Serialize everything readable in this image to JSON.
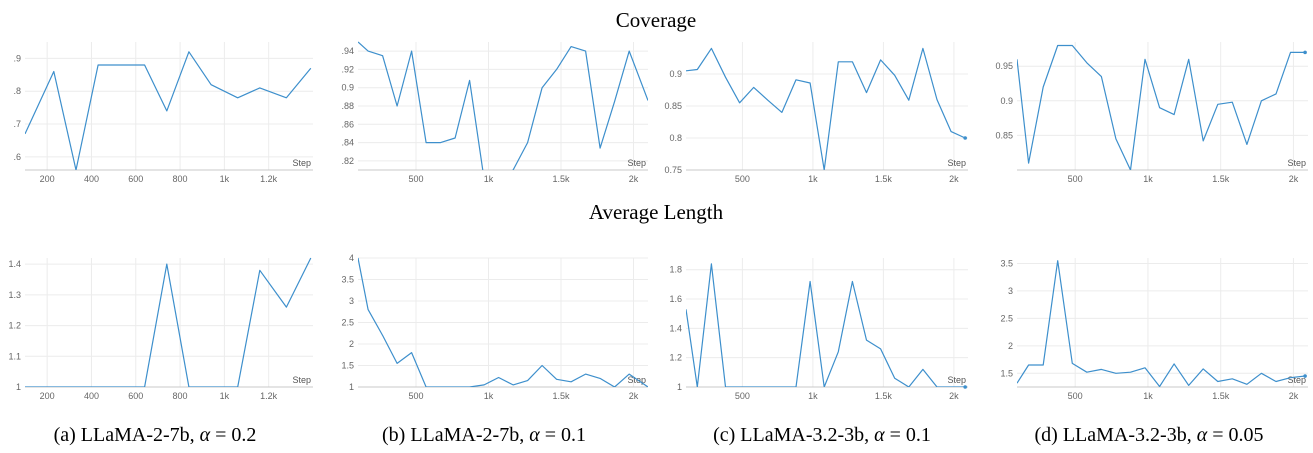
{
  "row_titles": [
    "Coverage",
    "Average Length"
  ],
  "captions": [
    {
      "text": "(a) LLaMA-2-7b, ",
      "alpha": "0.2"
    },
    {
      "text": "(b) LLaMA-2-7b, ",
      "alpha": "0.1"
    },
    {
      "text": "(c) LLaMA-3.2-3b, ",
      "alpha": "0.1"
    },
    {
      "text": "(d) LLaMA-3.2-3b, ",
      "alpha": "0.05"
    }
  ],
  "alpha_symbol": "α",
  "alpha_eq": " = ",
  "colors": {
    "line": "#3d8fcc",
    "grid": "#ececec",
    "axis": "#c8c8c8",
    "tick": "#666666"
  },
  "chart_data": [
    {
      "type": "line",
      "row": "Coverage",
      "panel": "a",
      "xlabel": "Step",
      "xlim": [
        100,
        1400
      ],
      "ylim": [
        0.56,
        0.95
      ],
      "xticks": [
        200,
        400,
        600,
        800,
        1000,
        1200
      ],
      "xtick_labels": [
        "200",
        "400",
        "600",
        "800",
        "1k",
        "1.2k"
      ],
      "yticks": [
        0.6,
        0.7,
        0.8,
        0.9
      ],
      "ytick_labels": [
        ".6",
        ".7",
        ".8",
        ".9"
      ],
      "x": [
        100,
        230,
        330,
        430,
        540,
        640,
        740,
        840,
        940,
        1060,
        1160,
        1280,
        1390
      ],
      "y": [
        0.67,
        0.86,
        0.56,
        0.88,
        0.88,
        0.88,
        0.74,
        0.92,
        0.82,
        0.78,
        0.81,
        0.78,
        0.87
      ],
      "end_marker": false
    },
    {
      "type": "line",
      "row": "Coverage",
      "panel": "b",
      "xlabel": "Step",
      "xlim": [
        100,
        2100
      ],
      "ylim": [
        0.81,
        0.95
      ],
      "xticks": [
        500,
        1000,
        1500,
        2000
      ],
      "xtick_labels": [
        "500",
        "1k",
        "1.5k",
        "2k"
      ],
      "yticks": [
        0.82,
        0.84,
        0.86,
        0.88,
        0.9,
        0.92,
        0.94
      ],
      "ytick_labels": [
        ".82",
        ".84",
        ".86",
        ".88",
        "0.9",
        ".92",
        ".94"
      ],
      "x": [
        100,
        170,
        270,
        370,
        470,
        570,
        670,
        770,
        870,
        970,
        1070,
        1170,
        1270,
        1370,
        1470,
        1570,
        1670,
        1770,
        1870,
        1970,
        2100
      ],
      "y": [
        0.95,
        0.94,
        0.935,
        0.88,
        0.94,
        0.84,
        0.84,
        0.845,
        0.908,
        0.8,
        0.8,
        0.81,
        0.84,
        0.9,
        0.92,
        0.945,
        0.94,
        0.834,
        0.885,
        0.94,
        0.886
      ],
      "end_marker": false
    },
    {
      "type": "line",
      "row": "Coverage",
      "panel": "c",
      "xlabel": "Step",
      "xlim": [
        100,
        2100
      ],
      "ylim": [
        0.75,
        0.95
      ],
      "xticks": [
        500,
        1000,
        1500,
        2000
      ],
      "xtick_labels": [
        "500",
        "1k",
        "1.5k",
        "2k"
      ],
      "yticks": [
        0.75,
        0.8,
        0.85,
        0.9
      ],
      "ytick_labels": [
        "0.75",
        "0.8",
        "0.85",
        "0.9"
      ],
      "x": [
        100,
        180,
        280,
        380,
        480,
        580,
        680,
        780,
        880,
        980,
        1080,
        1180,
        1280,
        1380,
        1480,
        1580,
        1680,
        1780,
        1880,
        1980,
        2080
      ],
      "y": [
        0.905,
        0.907,
        0.94,
        0.895,
        0.855,
        0.879,
        0.859,
        0.84,
        0.891,
        0.886,
        0.75,
        0.919,
        0.919,
        0.871,
        0.922,
        0.898,
        0.859,
        0.94,
        0.86,
        0.81,
        0.8
      ],
      "end_marker": true
    },
    {
      "type": "line",
      "row": "Coverage",
      "panel": "d",
      "xlabel": "Step",
      "xlim": [
        100,
        2100
      ],
      "ylim": [
        0.8,
        0.985
      ],
      "xticks": [
        500,
        1000,
        1500,
        2000
      ],
      "xtick_labels": [
        "500",
        "1k",
        "1.5k",
        "2k"
      ],
      "yticks": [
        0.85,
        0.9,
        0.95
      ],
      "ytick_labels": [
        "0.85",
        "0.9",
        "0.95"
      ],
      "x": [
        100,
        180,
        280,
        380,
        480,
        580,
        680,
        780,
        880,
        980,
        1080,
        1180,
        1280,
        1380,
        1480,
        1580,
        1680,
        1780,
        1880,
        1980,
        2080
      ],
      "y": [
        0.96,
        0.81,
        0.92,
        0.98,
        0.98,
        0.955,
        0.935,
        0.845,
        0.8,
        0.96,
        0.89,
        0.88,
        0.96,
        0.842,
        0.895,
        0.898,
        0.837,
        0.9,
        0.91,
        0.97,
        0.97
      ],
      "end_marker": true
    },
    {
      "type": "line",
      "row": "Average Length",
      "panel": "a",
      "xlabel": "Step",
      "xlim": [
        100,
        1400
      ],
      "ylim": [
        1.0,
        1.42
      ],
      "xticks": [
        200,
        400,
        600,
        800,
        1000,
        1200
      ],
      "xtick_labels": [
        "200",
        "400",
        "600",
        "800",
        "1k",
        "1.2k"
      ],
      "yticks": [
        1.0,
        1.1,
        1.2,
        1.3,
        1.4
      ],
      "ytick_labels": [
        "1",
        "1.1",
        "1.2",
        "1.3",
        "1.4"
      ],
      "x": [
        100,
        230,
        330,
        430,
        540,
        640,
        740,
        840,
        940,
        1060,
        1160,
        1280,
        1390
      ],
      "y": [
        1.0,
        1.0,
        1.0,
        1.0,
        1.0,
        1.0,
        1.4,
        1.0,
        1.0,
        1.0,
        1.38,
        1.26,
        1.42
      ],
      "end_marker": false
    },
    {
      "type": "line",
      "row": "Average Length",
      "panel": "b",
      "xlabel": "Step",
      "xlim": [
        100,
        2100
      ],
      "ylim": [
        1.0,
        4.0
      ],
      "xticks": [
        500,
        1000,
        1500,
        2000
      ],
      "xtick_labels": [
        "500",
        "1k",
        "1.5k",
        "2k"
      ],
      "yticks": [
        1.0,
        1.5,
        2.0,
        2.5,
        3.0,
        3.5,
        4.0
      ],
      "ytick_labels": [
        "1",
        "1.5",
        "2",
        "2.5",
        "3",
        "3.5",
        "4"
      ],
      "x": [
        100,
        170,
        270,
        370,
        470,
        570,
        670,
        770,
        870,
        970,
        1070,
        1170,
        1270,
        1370,
        1470,
        1570,
        1670,
        1770,
        1870,
        1970,
        2100
      ],
      "y": [
        4.0,
        2.8,
        2.2,
        1.55,
        1.8,
        1.0,
        1.0,
        1.0,
        1.0,
        1.05,
        1.22,
        1.05,
        1.15,
        1.5,
        1.18,
        1.12,
        1.3,
        1.2,
        1.0,
        1.3,
        1.0
      ],
      "end_marker": false
    },
    {
      "type": "line",
      "row": "Average Length",
      "panel": "c",
      "xlabel": "Step",
      "xlim": [
        100,
        2100
      ],
      "ylim": [
        1.0,
        1.88
      ],
      "xticks": [
        500,
        1000,
        1500,
        2000
      ],
      "xtick_labels": [
        "500",
        "1k",
        "1.5k",
        "2k"
      ],
      "yticks": [
        1.0,
        1.2,
        1.4,
        1.6,
        1.8
      ],
      "ytick_labels": [
        "1",
        "1.2",
        "1.4",
        "1.6",
        "1.8"
      ],
      "x": [
        100,
        180,
        280,
        380,
        480,
        580,
        680,
        780,
        880,
        980,
        1080,
        1180,
        1280,
        1380,
        1480,
        1580,
        1680,
        1780,
        1880,
        1980,
        2080
      ],
      "y": [
        1.53,
        1.0,
        1.84,
        1.0,
        1.0,
        1.0,
        1.0,
        1.0,
        1.0,
        1.72,
        1.0,
        1.24,
        1.72,
        1.32,
        1.26,
        1.06,
        1.0,
        1.12,
        1.0,
        1.0,
        1.0
      ],
      "end_marker": true
    },
    {
      "type": "line",
      "row": "Average Length",
      "panel": "d",
      "xlabel": "Step",
      "xlim": [
        100,
        2100
      ],
      "ylim": [
        1.25,
        3.6
      ],
      "xticks": [
        500,
        1000,
        1500,
        2000
      ],
      "xtick_labels": [
        "500",
        "1k",
        "1.5k",
        "2k"
      ],
      "yticks": [
        1.5,
        2.0,
        2.5,
        3.0,
        3.5
      ],
      "ytick_labels": [
        "1.5",
        "2",
        "2.5",
        "3",
        "3.5"
      ],
      "x": [
        100,
        180,
        280,
        380,
        480,
        580,
        680,
        780,
        880,
        980,
        1080,
        1180,
        1280,
        1380,
        1480,
        1580,
        1680,
        1780,
        1880,
        1980,
        2080
      ],
      "y": [
        1.32,
        1.65,
        1.65,
        3.55,
        1.68,
        1.52,
        1.57,
        1.5,
        1.52,
        1.6,
        1.26,
        1.67,
        1.28,
        1.58,
        1.35,
        1.4,
        1.3,
        1.5,
        1.35,
        1.42,
        1.45
      ],
      "end_marker": true
    }
  ]
}
